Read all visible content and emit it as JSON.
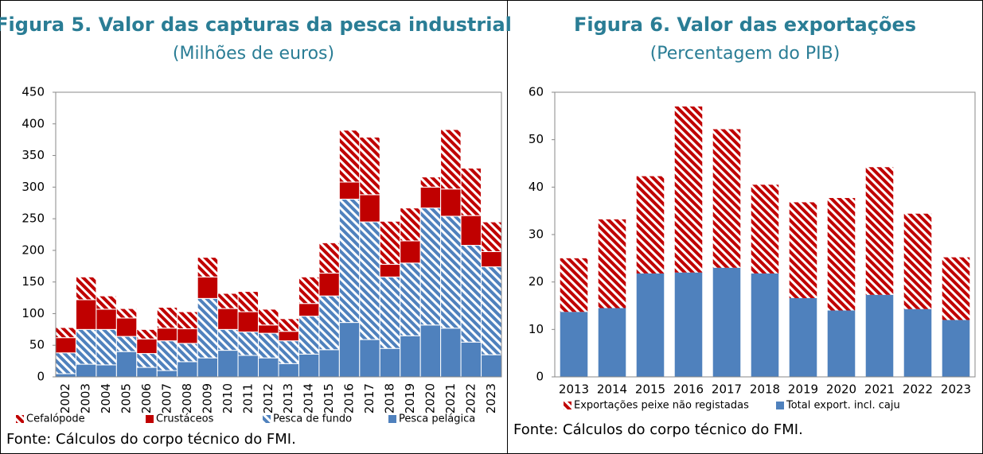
{
  "chart_data": [
    {
      "type": "stacked_bar",
      "title": "Figura 5. Valor das capturas da pesca industrial",
      "subtitle": "(Milhões de euros)",
      "categories": [
        "2002",
        "2003",
        "2004",
        "2005",
        "2006",
        "2007",
        "2008",
        "2009",
        "2010",
        "2011",
        "2012",
        "2013",
        "2014",
        "2015",
        "2016",
        "2017",
        "2018",
        "2019",
        "2020",
        "2021",
        "2022",
        "2023"
      ],
      "series": [
        {
          "name": "Pesca pelágica",
          "color": "#4f81bd",
          "hatch": false,
          "values": [
            5,
            20,
            19,
            40,
            15,
            10,
            24,
            30,
            42,
            34,
            30,
            21,
            36,
            43,
            86,
            59,
            45,
            65,
            82,
            77,
            55,
            35
          ]
        },
        {
          "name": "Pesca de fundo",
          "color": "#4f81bd",
          "hatch": true,
          "values": [
            33,
            55,
            56,
            24,
            22,
            47,
            29,
            94,
            33,
            37,
            39,
            36,
            60,
            85,
            195,
            186,
            113,
            115,
            185,
            177,
            153,
            139
          ]
        },
        {
          "name": "Crustáceos",
          "color": "#c00000",
          "hatch": false,
          "values": [
            24,
            47,
            32,
            29,
            23,
            20,
            23,
            34,
            33,
            32,
            13,
            15,
            20,
            36,
            27,
            43,
            20,
            35,
            33,
            43,
            47,
            24
          ]
        },
        {
          "name": "Cefalópode",
          "color": "#c00000",
          "hatch": true,
          "values": [
            16,
            36,
            21,
            15,
            15,
            33,
            27,
            31,
            24,
            32,
            25,
            20,
            42,
            48,
            82,
            91,
            68,
            52,
            16,
            94,
            75,
            47
          ]
        }
      ],
      "ylim": [
        0,
        450
      ],
      "yticks": [
        0,
        50,
        100,
        150,
        200,
        250,
        300,
        350,
        400,
        450
      ],
      "rotate_x_labels": true,
      "source": "Fonte: Cálculos do corpo técnico do FMI."
    },
    {
      "type": "stacked_bar",
      "title": "Figura 6. Valor das exportações",
      "subtitle": "(Percentagem do PIB)",
      "categories": [
        "2013",
        "2014",
        "2015",
        "2016",
        "2017",
        "2018",
        "2019",
        "2020",
        "2021",
        "2022",
        "2023"
      ],
      "series": [
        {
          "name": "Total export. incl. caju",
          "color": "#4f81bd",
          "hatch": false,
          "values": [
            13.7,
            14.5,
            21.8,
            22,
            23,
            21.8,
            16.6,
            14,
            17.3,
            14.3,
            12
          ]
        },
        {
          "name": "Exportações peixe não registadas",
          "color": "#c00000",
          "hatch": true,
          "values": [
            11.3,
            18.7,
            20.5,
            35,
            29.2,
            18.7,
            20.2,
            23.7,
            26.9,
            20.1,
            13.2
          ]
        }
      ],
      "ylim": [
        0,
        60
      ],
      "yticks": [
        0,
        10,
        20,
        30,
        40,
        50,
        60
      ],
      "rotate_x_labels": false,
      "source": "Fonte: Cálculos do corpo técnico do FMI."
    }
  ]
}
